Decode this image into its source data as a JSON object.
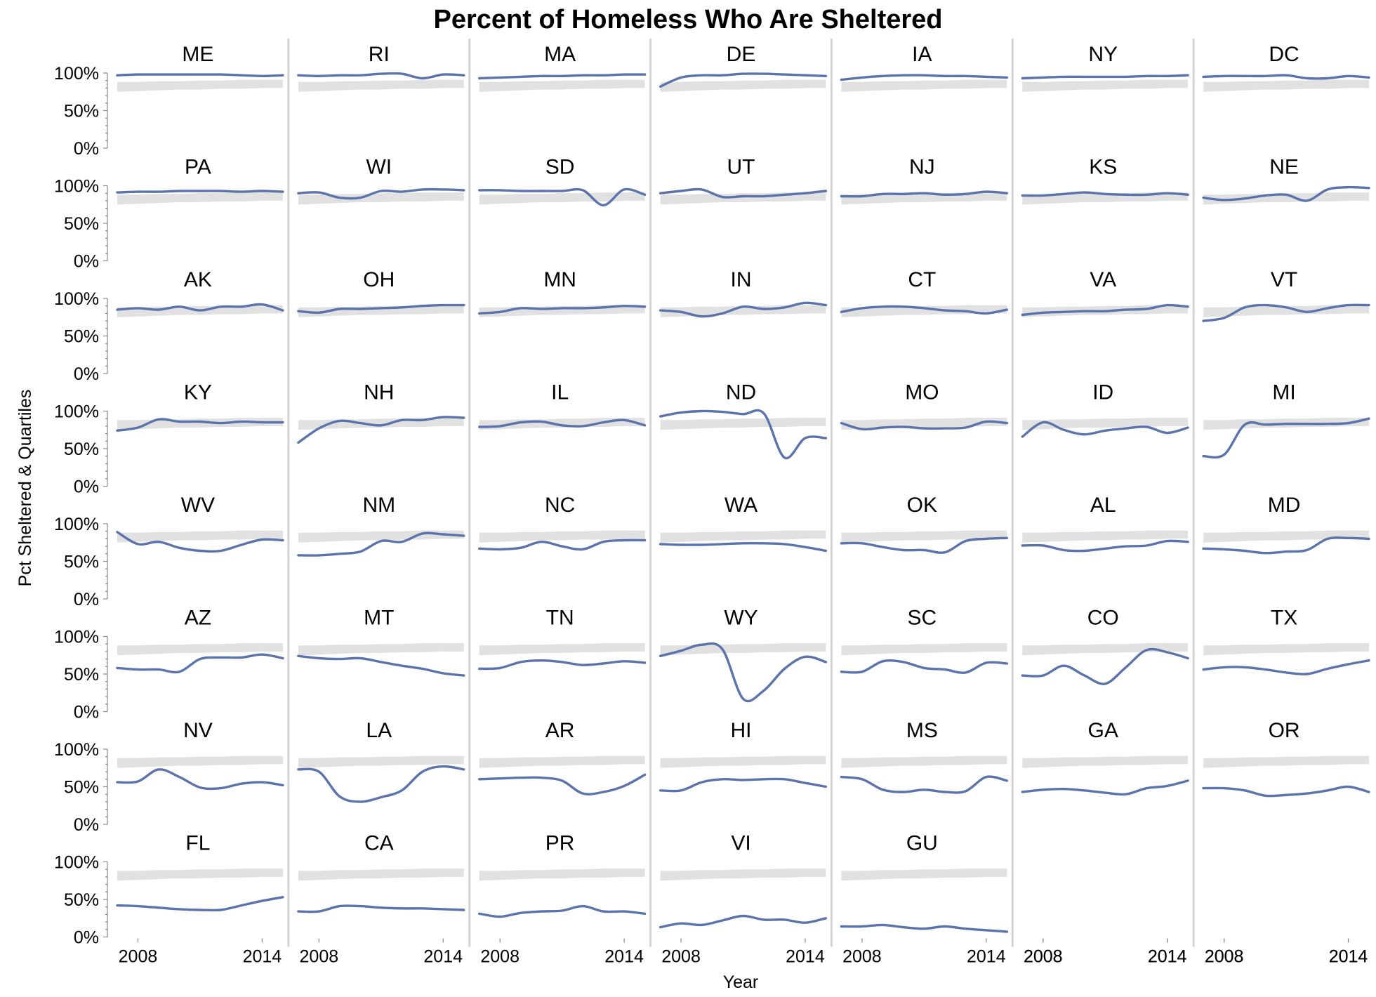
{
  "chart_data": {
    "type": "line",
    "title": "Percent of Homeless Who Are Sheltered",
    "xlabel": "Year",
    "ylabel": "Pct Sheltered & Quartiles",
    "x": [
      2007,
      2008,
      2009,
      2010,
      2011,
      2012,
      2013,
      2014,
      2015
    ],
    "x_ticks": [
      "2008",
      "2014"
    ],
    "y_ticks": [
      "0%",
      "50%",
      "100%"
    ],
    "ylim": [
      0,
      100
    ],
    "layout": "facet grid, 7 columns x 8 rows, shared axes",
    "colors": {
      "line": "#5a73ad",
      "quartile_band": "#dcdcdc"
    },
    "quartile_band": {
      "lower": [
        75,
        76,
        77,
        78,
        78,
        79,
        79,
        80,
        80
      ],
      "upper": [
        88,
        88,
        89,
        89,
        90,
        90,
        91,
        91,
        91
      ]
    },
    "series": [
      {
        "name": "ME",
        "values": [
          97,
          98,
          98,
          98,
          98,
          98,
          97,
          96,
          97
        ]
      },
      {
        "name": "RI",
        "values": [
          97,
          96,
          97,
          97,
          99,
          99,
          93,
          98,
          97
        ]
      },
      {
        "name": "MA",
        "values": [
          93,
          94,
          95,
          96,
          96,
          97,
          97,
          98,
          98
        ]
      },
      {
        "name": "DE",
        "values": [
          82,
          94,
          97,
          97,
          99,
          99,
          98,
          97,
          96
        ]
      },
      {
        "name": "IA",
        "values": [
          91,
          94,
          96,
          97,
          97,
          96,
          96,
          95,
          94
        ]
      },
      {
        "name": "NY",
        "values": [
          93,
          94,
          95,
          95,
          95,
          95,
          96,
          96,
          97
        ]
      },
      {
        "name": "DC",
        "values": [
          95,
          96,
          96,
          96,
          97,
          93,
          93,
          96,
          94
        ]
      },
      {
        "name": "PA",
        "values": [
          91,
          92,
          92,
          93,
          93,
          93,
          92,
          93,
          92
        ]
      },
      {
        "name": "WI",
        "values": [
          90,
          91,
          84,
          84,
          93,
          92,
          95,
          95,
          94
        ]
      },
      {
        "name": "SD",
        "values": [
          94,
          94,
          93,
          93,
          93,
          94,
          74,
          95,
          88
        ]
      },
      {
        "name": "UT",
        "values": [
          90,
          93,
          95,
          85,
          86,
          86,
          88,
          90,
          93
        ]
      },
      {
        "name": "NJ",
        "values": [
          86,
          86,
          89,
          89,
          90,
          88,
          89,
          92,
          90
        ]
      },
      {
        "name": "KS",
        "values": [
          87,
          87,
          89,
          91,
          89,
          88,
          88,
          90,
          88
        ]
      },
      {
        "name": "NE",
        "values": [
          84,
          81,
          83,
          87,
          88,
          80,
          95,
          98,
          97
        ]
      },
      {
        "name": "AK",
        "values": [
          85,
          87,
          85,
          89,
          84,
          89,
          89,
          92,
          84
        ]
      },
      {
        "name": "OH",
        "values": [
          83,
          81,
          86,
          86,
          87,
          88,
          90,
          91,
          91
        ]
      },
      {
        "name": "MN",
        "values": [
          80,
          82,
          87,
          86,
          87,
          87,
          88,
          90,
          89
        ]
      },
      {
        "name": "IN",
        "values": [
          84,
          82,
          76,
          80,
          89,
          86,
          88,
          94,
          91
        ]
      },
      {
        "name": "CT",
        "values": [
          82,
          87,
          89,
          89,
          87,
          84,
          83,
          80,
          85
        ]
      },
      {
        "name": "VA",
        "values": [
          78,
          81,
          82,
          83,
          83,
          85,
          86,
          91,
          89
        ]
      },
      {
        "name": "VT",
        "values": [
          70,
          74,
          88,
          91,
          88,
          82,
          87,
          91,
          91
        ]
      },
      {
        "name": "KY",
        "values": [
          74,
          78,
          89,
          86,
          86,
          84,
          86,
          85,
          85
        ]
      },
      {
        "name": "NH",
        "values": [
          58,
          77,
          87,
          84,
          81,
          88,
          88,
          92,
          91
        ]
      },
      {
        "name": "IL",
        "values": [
          79,
          80,
          85,
          86,
          81,
          80,
          85,
          88,
          81
        ]
      },
      {
        "name": "ND",
        "values": [
          93,
          98,
          100,
          99,
          96,
          97,
          38,
          64,
          64
        ]
      },
      {
        "name": "MO",
        "values": [
          84,
          76,
          78,
          79,
          77,
          77,
          78,
          86,
          84
        ]
      },
      {
        "name": "ID",
        "values": [
          66,
          85,
          75,
          69,
          74,
          77,
          79,
          71,
          78
        ]
      },
      {
        "name": "MI",
        "values": [
          40,
          42,
          82,
          82,
          83,
          83,
          83,
          84,
          90
        ]
      },
      {
        "name": "WV",
        "values": [
          89,
          73,
          76,
          68,
          64,
          64,
          72,
          79,
          78
        ]
      },
      {
        "name": "NM",
        "values": [
          58,
          58,
          60,
          63,
          77,
          76,
          87,
          86,
          84
        ]
      },
      {
        "name": "NC",
        "values": [
          67,
          66,
          68,
          76,
          70,
          66,
          76,
          78,
          78
        ]
      },
      {
        "name": "WA",
        "values": [
          73,
          72,
          72,
          73,
          74,
          74,
          73,
          69,
          64
        ]
      },
      {
        "name": "OK",
        "values": [
          74,
          74,
          69,
          65,
          65,
          62,
          77,
          80,
          81
        ]
      },
      {
        "name": "AL",
        "values": [
          71,
          71,
          65,
          64,
          67,
          70,
          71,
          77,
          76
        ]
      },
      {
        "name": "MD",
        "values": [
          67,
          66,
          64,
          61,
          63,
          65,
          80,
          81,
          80
        ]
      },
      {
        "name": "AZ",
        "values": [
          58,
          56,
          56,
          53,
          70,
          72,
          72,
          76,
          71
        ]
      },
      {
        "name": "MT",
        "values": [
          74,
          71,
          70,
          71,
          66,
          61,
          57,
          51,
          48
        ]
      },
      {
        "name": "TN",
        "values": [
          57,
          58,
          66,
          68,
          66,
          62,
          64,
          67,
          65
        ]
      },
      {
        "name": "WY",
        "values": [
          74,
          81,
          89,
          83,
          17,
          28,
          57,
          73,
          66
        ]
      },
      {
        "name": "SC",
        "values": [
          53,
          53,
          67,
          66,
          58,
          56,
          52,
          65,
          64
        ]
      },
      {
        "name": "CO",
        "values": [
          48,
          48,
          61,
          48,
          37,
          59,
          82,
          79,
          71
        ]
      },
      {
        "name": "TX",
        "values": [
          56,
          59,
          59,
          56,
          52,
          50,
          57,
          63,
          68
        ]
      },
      {
        "name": "NV",
        "values": [
          56,
          57,
          73,
          63,
          49,
          48,
          54,
          56,
          52
        ]
      },
      {
        "name": "LA",
        "values": [
          73,
          70,
          37,
          30,
          36,
          45,
          70,
          77,
          73
        ]
      },
      {
        "name": "AR",
        "values": [
          60,
          61,
          62,
          62,
          58,
          41,
          43,
          51,
          66
        ]
      },
      {
        "name": "HI",
        "values": [
          45,
          45,
          56,
          60,
          59,
          60,
          60,
          55,
          50
        ]
      },
      {
        "name": "MS",
        "values": [
          63,
          60,
          46,
          43,
          46,
          43,
          44,
          63,
          58
        ]
      },
      {
        "name": "GA",
        "values": [
          43,
          46,
          47,
          45,
          42,
          40,
          48,
          51,
          58
        ]
      },
      {
        "name": "OR",
        "values": [
          48,
          48,
          45,
          38,
          39,
          41,
          45,
          50,
          43
        ]
      },
      {
        "name": "FL",
        "values": [
          42,
          41,
          39,
          37,
          36,
          36,
          42,
          48,
          53
        ]
      },
      {
        "name": "CA",
        "values": [
          34,
          34,
          41,
          41,
          39,
          38,
          38,
          37,
          36
        ]
      },
      {
        "name": "PR",
        "values": [
          31,
          27,
          32,
          34,
          35,
          41,
          34,
          34,
          31
        ]
      },
      {
        "name": "VI",
        "values": [
          13,
          18,
          16,
          22,
          28,
          23,
          23,
          19,
          25
        ]
      },
      {
        "name": "GU",
        "values": [
          14,
          14,
          16,
          13,
          11,
          14,
          11,
          9,
          7
        ]
      }
    ]
  }
}
